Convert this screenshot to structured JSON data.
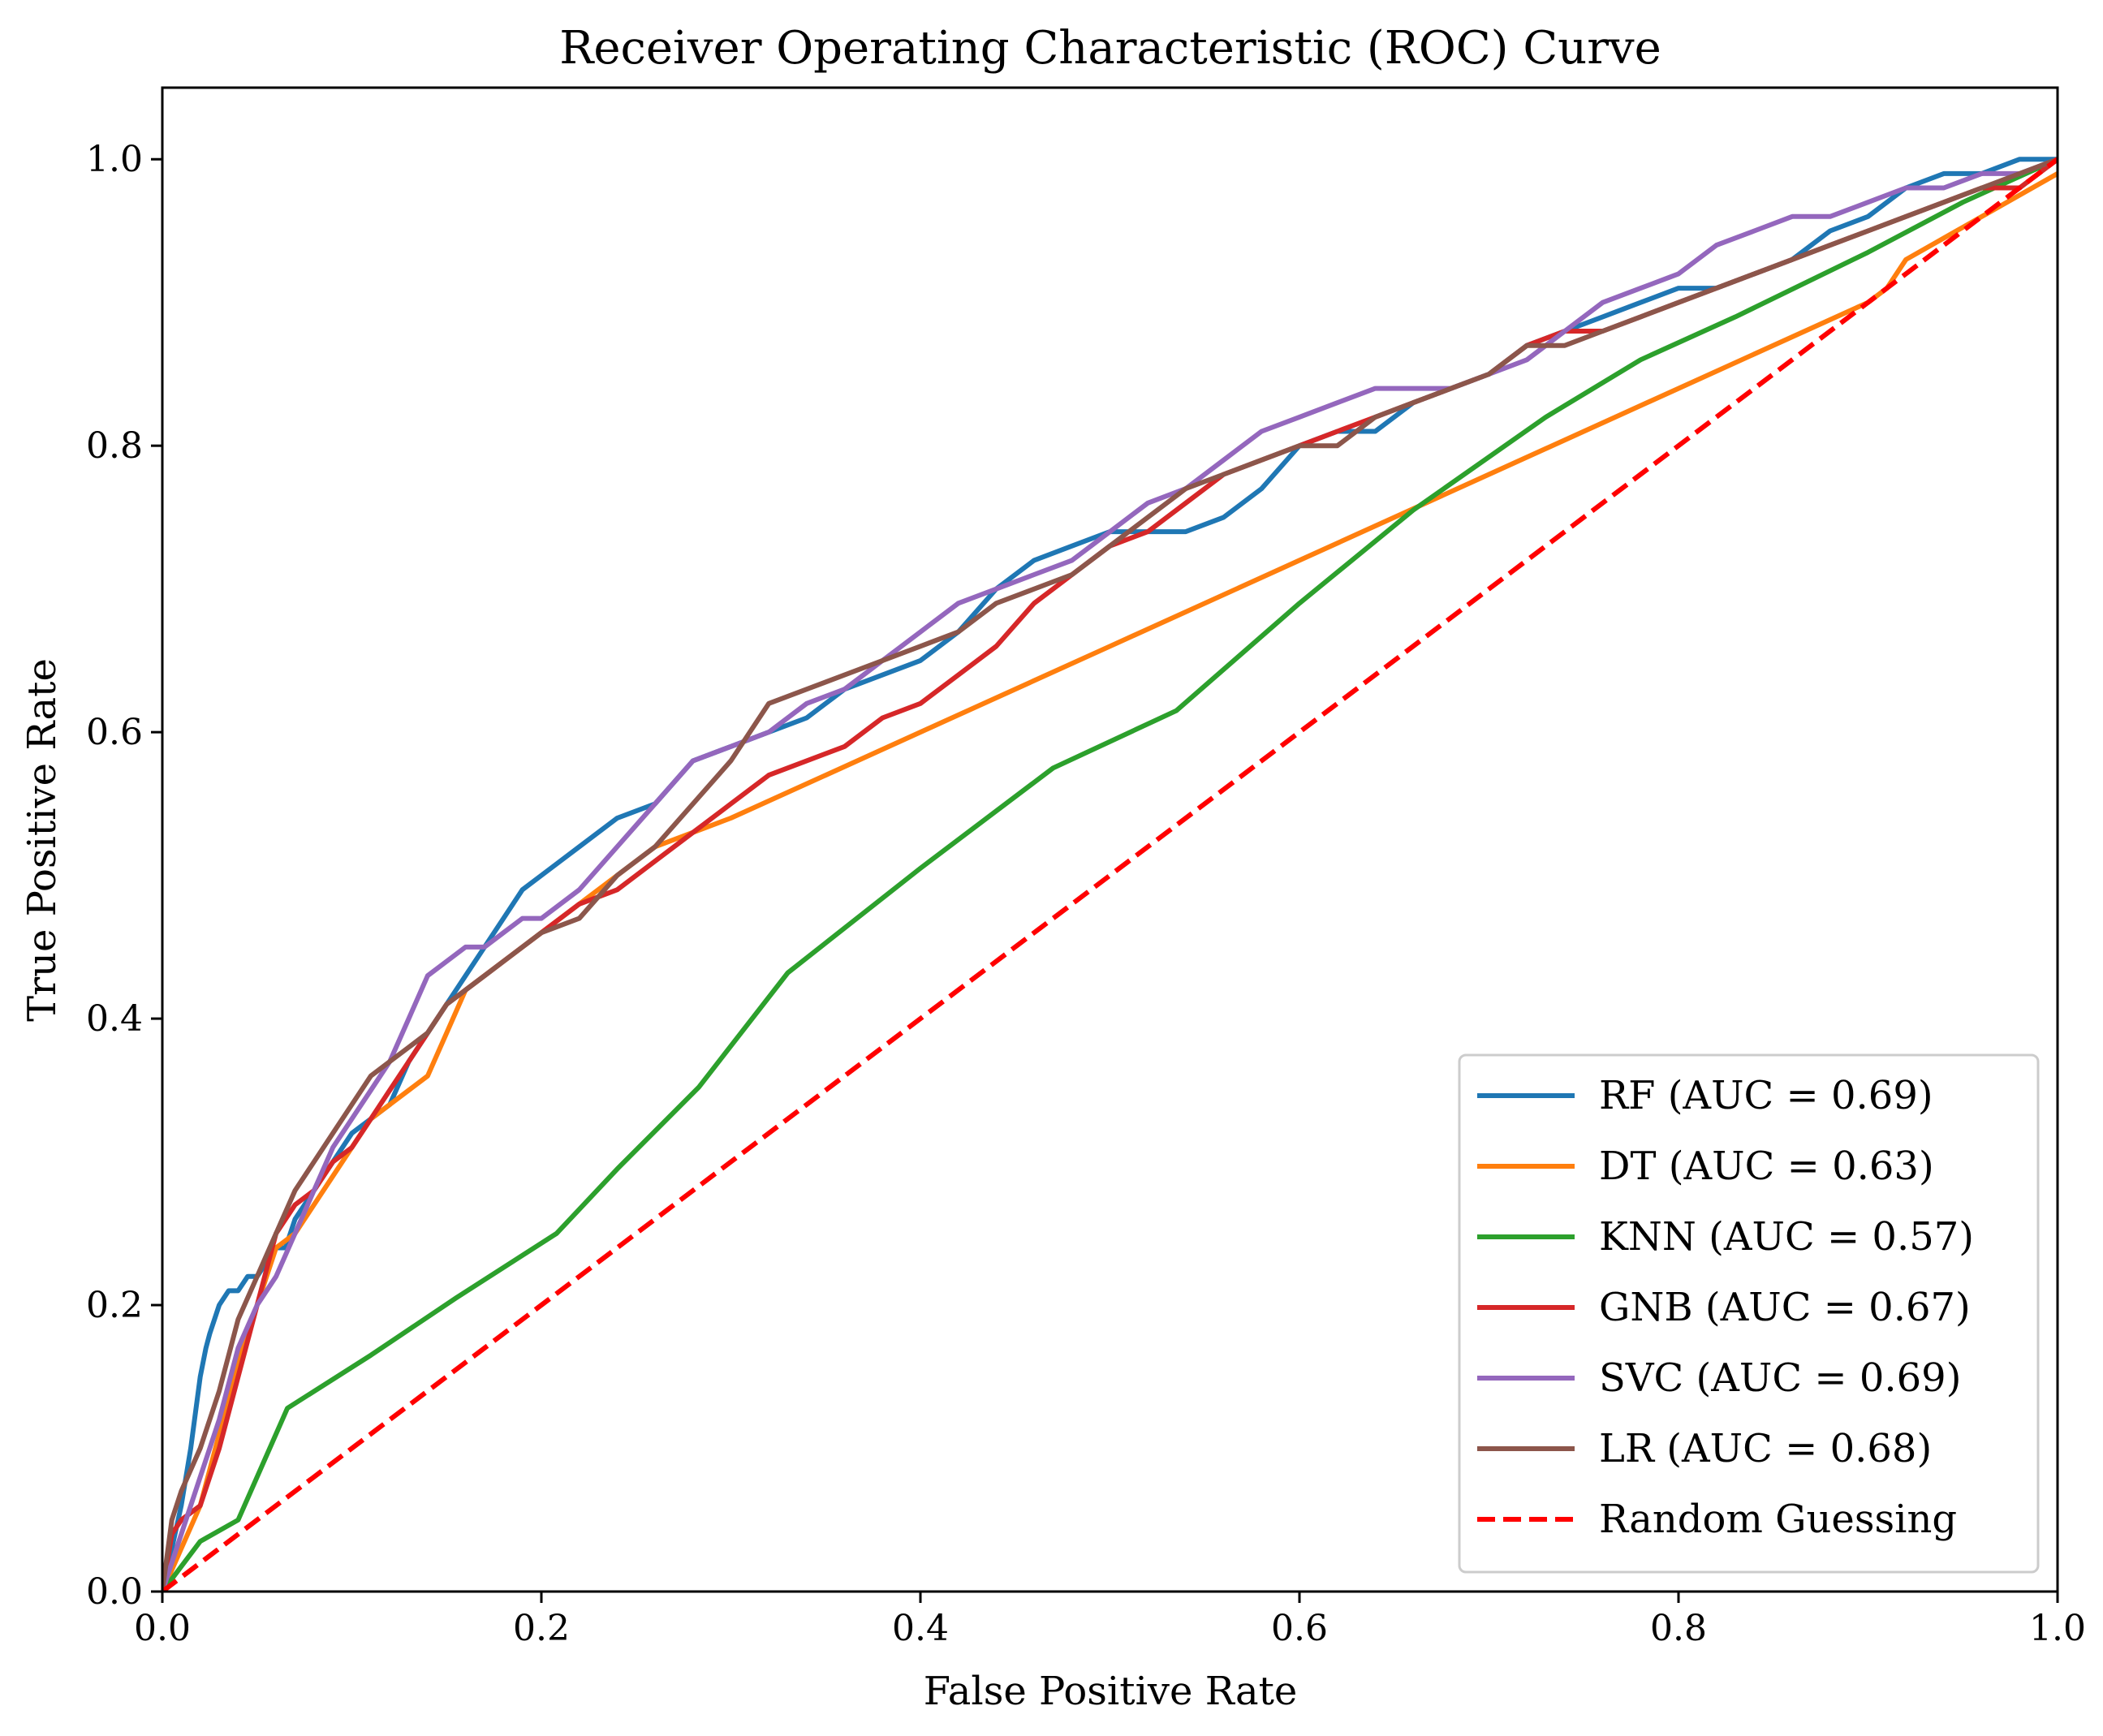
{
  "chart_data": {
    "type": "line",
    "title": "Receiver Operating Characteristic (ROC) Curve",
    "xlabel": "False Positive Rate",
    "ylabel": "True Positive Rate",
    "xlim": [
      0,
      1
    ],
    "ylim": [
      0,
      1.05
    ],
    "x_ticks": [
      "0.0",
      "0.2",
      "0.4",
      "0.6",
      "0.8",
      "1.0"
    ],
    "y_ticks": [
      "0.0",
      "0.2",
      "0.4",
      "0.6",
      "0.8",
      "1.0"
    ],
    "grid": false,
    "legend_position": "lower-right",
    "series": [
      {
        "name": "RF (AUC = 0.69)",
        "color": "#1f77b4",
        "style": "solid",
        "x": [
          0,
          0.005,
          0.01,
          0.015,
          0.02,
          0.023,
          0.025,
          0.03,
          0.035,
          0.04,
          0.045,
          0.05,
          0.055,
          0.06,
          0.065,
          0.07,
          0.08,
          0.09,
          0.1,
          0.11,
          0.12,
          0.13,
          0.14,
          0.15,
          0.16,
          0.17,
          0.18,
          0.19,
          0.2,
          0.21,
          0.22,
          0.24,
          0.26,
          0.28,
          0.3,
          0.32,
          0.34,
          0.36,
          0.38,
          0.4,
          0.42,
          0.44,
          0.46,
          0.48,
          0.5,
          0.52,
          0.54,
          0.56,
          0.58,
          0.6,
          0.62,
          0.64,
          0.66,
          0.68,
          0.7,
          0.72,
          0.74,
          0.76,
          0.78,
          0.8,
          0.82,
          0.84,
          0.86,
          0.88,
          0.9,
          0.92,
          0.94,
          0.96,
          0.98,
          1.0
        ],
        "y": [
          0,
          0.03,
          0.06,
          0.1,
          0.15,
          0.17,
          0.18,
          0.2,
          0.21,
          0.21,
          0.22,
          0.22,
          0.23,
          0.24,
          0.24,
          0.26,
          0.28,
          0.3,
          0.32,
          0.33,
          0.34,
          0.37,
          0.39,
          0.41,
          0.43,
          0.45,
          0.47,
          0.49,
          0.5,
          0.51,
          0.52,
          0.54,
          0.55,
          0.58,
          0.59,
          0.6,
          0.61,
          0.63,
          0.64,
          0.65,
          0.67,
          0.7,
          0.72,
          0.73,
          0.74,
          0.74,
          0.74,
          0.75,
          0.77,
          0.8,
          0.81,
          0.81,
          0.83,
          0.84,
          0.85,
          0.87,
          0.88,
          0.89,
          0.9,
          0.91,
          0.91,
          0.92,
          0.93,
          0.95,
          0.96,
          0.98,
          0.99,
          0.99,
          1.0,
          1.0
        ]
      },
      {
        "name": "DT (AUC = 0.63)",
        "color": "#ff7f0e",
        "style": "solid",
        "x": [
          0,
          0.01,
          0.02,
          0.03,
          0.04,
          0.05,
          0.06,
          0.07,
          0.08,
          0.09,
          0.1,
          0.11,
          0.12,
          0.13,
          0.14,
          0.15,
          0.16,
          0.18,
          0.2,
          0.22,
          0.24,
          0.26,
          0.3,
          0.35,
          0.4,
          0.5,
          0.6,
          0.7,
          0.8,
          0.9,
          0.91,
          0.92,
          1.0
        ],
        "y": [
          0,
          0.03,
          0.06,
          0.11,
          0.16,
          0.2,
          0.24,
          0.25,
          0.27,
          0.29,
          0.31,
          0.33,
          0.34,
          0.35,
          0.36,
          0.39,
          0.42,
          0.44,
          0.46,
          0.48,
          0.5,
          0.52,
          0.54,
          0.57,
          0.6,
          0.66,
          0.72,
          0.78,
          0.84,
          0.9,
          0.91,
          0.93,
          0.99
        ]
      },
      {
        "name": "KNN (AUC = 0.57)",
        "color": "#2ca02c",
        "style": "solid",
        "x": [
          0,
          0.02,
          0.04,
          0.066,
          0.11,
          0.155,
          0.208,
          0.24,
          0.283,
          0.33,
          0.4,
          0.47,
          0.535,
          0.6,
          0.66,
          0.73,
          0.78,
          0.83,
          0.9,
          0.95,
          1.0
        ],
        "y": [
          0,
          0.035,
          0.05,
          0.128,
          0.165,
          0.205,
          0.25,
          0.295,
          0.352,
          0.432,
          0.505,
          0.575,
          0.615,
          0.69,
          0.755,
          0.82,
          0.86,
          0.89,
          0.935,
          0.97,
          1.0
        ]
      },
      {
        "name": "GNB (AUC = 0.67)",
        "color": "#d62728",
        "style": "solid",
        "x": [
          0,
          0.005,
          0.01,
          0.02,
          0.03,
          0.04,
          0.05,
          0.06,
          0.07,
          0.08,
          0.09,
          0.1,
          0.11,
          0.12,
          0.13,
          0.14,
          0.15,
          0.16,
          0.17,
          0.18,
          0.19,
          0.2,
          0.22,
          0.24,
          0.26,
          0.28,
          0.3,
          0.32,
          0.34,
          0.36,
          0.38,
          0.4,
          0.42,
          0.44,
          0.46,
          0.48,
          0.5,
          0.52,
          0.54,
          0.56,
          0.58,
          0.6,
          0.62,
          0.64,
          0.66,
          0.68,
          0.7,
          0.72,
          0.74,
          0.76,
          0.78,
          0.8,
          0.82,
          0.84,
          0.86,
          0.88,
          0.9,
          0.92,
          0.94,
          0.96,
          0.98,
          1.0
        ],
        "y": [
          0,
          0.04,
          0.05,
          0.06,
          0.1,
          0.15,
          0.2,
          0.25,
          0.27,
          0.28,
          0.3,
          0.31,
          0.33,
          0.35,
          0.37,
          0.39,
          0.41,
          0.42,
          0.43,
          0.44,
          0.45,
          0.46,
          0.48,
          0.49,
          0.51,
          0.53,
          0.55,
          0.57,
          0.58,
          0.59,
          0.61,
          0.62,
          0.64,
          0.66,
          0.69,
          0.71,
          0.73,
          0.74,
          0.76,
          0.78,
          0.79,
          0.8,
          0.81,
          0.82,
          0.83,
          0.84,
          0.85,
          0.87,
          0.88,
          0.88,
          0.89,
          0.9,
          0.91,
          0.92,
          0.93,
          0.94,
          0.95,
          0.96,
          0.97,
          0.98,
          0.98,
          1.0
        ]
      },
      {
        "name": "SVC (AUC = 0.69)",
        "color": "#9467bd",
        "style": "solid",
        "x": [
          0,
          0.01,
          0.02,
          0.03,
          0.04,
          0.05,
          0.06,
          0.07,
          0.08,
          0.09,
          0.1,
          0.11,
          0.12,
          0.13,
          0.14,
          0.15,
          0.16,
          0.17,
          0.18,
          0.19,
          0.2,
          0.22,
          0.24,
          0.26,
          0.28,
          0.3,
          0.32,
          0.34,
          0.36,
          0.38,
          0.4,
          0.42,
          0.44,
          0.46,
          0.48,
          0.5,
          0.52,
          0.54,
          0.56,
          0.58,
          0.6,
          0.62,
          0.64,
          0.66,
          0.68,
          0.7,
          0.72,
          0.74,
          0.76,
          0.78,
          0.8,
          0.82,
          0.84,
          0.86,
          0.88,
          0.9,
          0.92,
          0.94,
          0.96,
          0.98,
          1.0
        ],
        "y": [
          0,
          0.04,
          0.08,
          0.12,
          0.17,
          0.2,
          0.22,
          0.25,
          0.28,
          0.31,
          0.33,
          0.35,
          0.37,
          0.4,
          0.43,
          0.44,
          0.45,
          0.45,
          0.46,
          0.47,
          0.47,
          0.49,
          0.52,
          0.55,
          0.58,
          0.59,
          0.6,
          0.62,
          0.63,
          0.65,
          0.67,
          0.69,
          0.7,
          0.71,
          0.72,
          0.74,
          0.76,
          0.77,
          0.79,
          0.81,
          0.82,
          0.83,
          0.84,
          0.84,
          0.84,
          0.85,
          0.86,
          0.88,
          0.9,
          0.91,
          0.92,
          0.94,
          0.95,
          0.96,
          0.96,
          0.97,
          0.98,
          0.98,
          0.99,
          0.99,
          1.0
        ]
      },
      {
        "name": "LR (AUC = 0.68)",
        "color": "#8c564b",
        "style": "solid",
        "x": [
          0,
          0.005,
          0.01,
          0.02,
          0.03,
          0.04,
          0.05,
          0.06,
          0.07,
          0.08,
          0.09,
          0.1,
          0.11,
          0.12,
          0.13,
          0.14,
          0.15,
          0.16,
          0.17,
          0.18,
          0.19,
          0.2,
          0.22,
          0.24,
          0.26,
          0.28,
          0.3,
          0.32,
          0.34,
          0.36,
          0.38,
          0.4,
          0.42,
          0.44,
          0.46,
          0.48,
          0.5,
          0.52,
          0.54,
          0.56,
          0.58,
          0.6,
          0.62,
          0.64,
          0.66,
          0.68,
          0.7,
          0.72,
          0.74,
          0.76,
          0.78,
          0.8,
          0.82,
          0.84,
          0.86,
          0.88,
          0.9,
          0.92,
          0.94,
          0.96,
          0.98,
          1.0
        ],
        "y": [
          0,
          0.05,
          0.07,
          0.1,
          0.14,
          0.19,
          0.22,
          0.25,
          0.28,
          0.3,
          0.32,
          0.34,
          0.36,
          0.37,
          0.38,
          0.39,
          0.41,
          0.42,
          0.43,
          0.44,
          0.45,
          0.46,
          0.47,
          0.5,
          0.52,
          0.55,
          0.58,
          0.62,
          0.63,
          0.64,
          0.65,
          0.66,
          0.67,
          0.69,
          0.7,
          0.71,
          0.73,
          0.75,
          0.77,
          0.78,
          0.79,
          0.8,
          0.8,
          0.82,
          0.83,
          0.84,
          0.85,
          0.87,
          0.87,
          0.88,
          0.89,
          0.9,
          0.91,
          0.92,
          0.93,
          0.94,
          0.95,
          0.96,
          0.97,
          0.98,
          0.99,
          1.0
        ]
      },
      {
        "name": "Random Guessing",
        "color": "#ff0000",
        "style": "dashed",
        "x": [
          0,
          1
        ],
        "y": [
          0,
          1
        ]
      }
    ]
  }
}
